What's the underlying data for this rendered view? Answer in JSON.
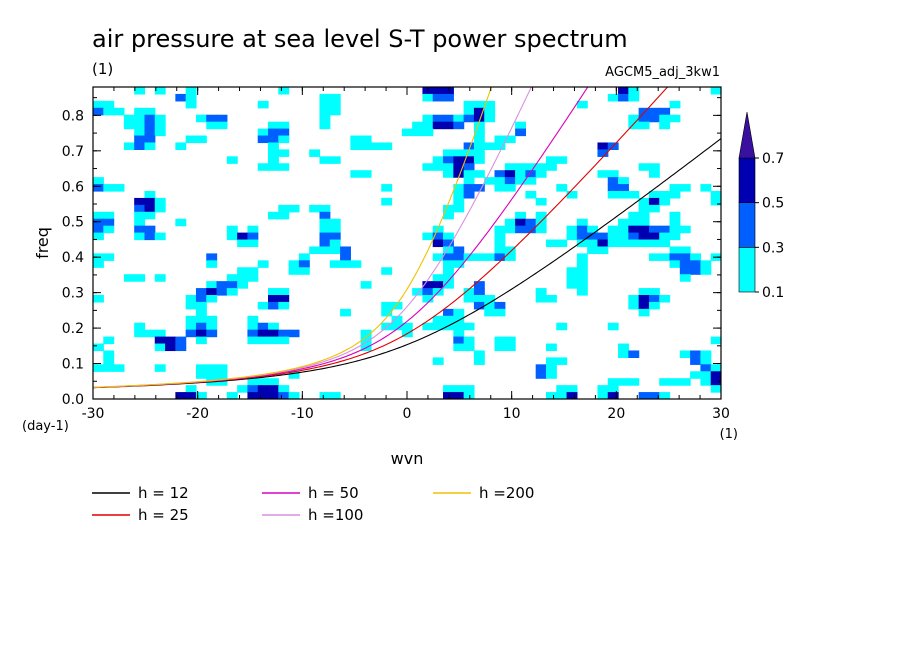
{
  "chart_data": {
    "type": "contour",
    "title": "air pressure at sea level S-T power spectrum",
    "units_label": "(1)",
    "run_label": "AGCM5_adj_3kw1",
    "xlabel": "wvn",
    "ylabel": "freq",
    "x_unit_label": "(1)",
    "y_unit_label": "(day-1)",
    "xlim": [
      -30,
      30
    ],
    "ylim": [
      0,
      0.88
    ],
    "x_ticks": [
      -30,
      -20,
      -10,
      0,
      10,
      20,
      30
    ],
    "x_tick_labels": [
      "-30",
      "-20",
      "-10",
      "0",
      "10",
      "20",
      "30"
    ],
    "y_ticks": [
      0.0,
      0.1,
      0.2,
      0.3,
      0.4,
      0.5,
      0.6,
      0.7,
      0.8
    ],
    "y_tick_labels": [
      "0.0",
      "0.1",
      "0.2",
      "0.3",
      "0.4",
      "0.5",
      "0.6",
      "0.7",
      "0.8"
    ],
    "colorbar": {
      "levels": [
        0.1,
        0.3,
        0.5,
        0.7
      ],
      "level_labels": [
        "0.1",
        "0.3",
        "0.5",
        "0.7"
      ],
      "colors": [
        "#00ffff",
        "#0060ff",
        "#0000b0",
        "#3a10a0"
      ]
    },
    "series": [
      {
        "name": "h = 12",
        "h": 12,
        "color": "#000000"
      },
      {
        "name": "h = 25",
        "h": 25,
        "color": "#e00000"
      },
      {
        "name": "h = 50",
        "h": 50,
        "color": "#d800c0"
      },
      {
        "name": "h =100",
        "h": 100,
        "color": "#d890e0"
      },
      {
        "name": "h =200",
        "h": 200,
        "color": "#f0c000"
      }
    ]
  }
}
